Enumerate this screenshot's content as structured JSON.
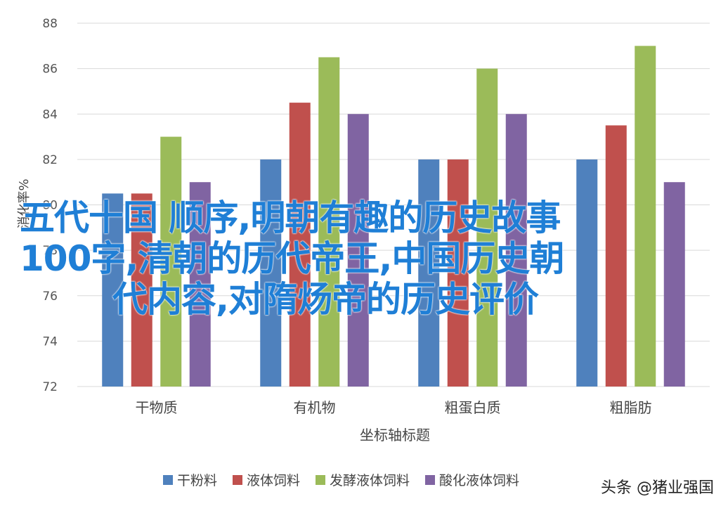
{
  "chart_data": {
    "type": "bar",
    "categories": [
      "干物质",
      "有机物",
      "粗蛋白质",
      "粗脂肪"
    ],
    "series": [
      {
        "name": "干粉料",
        "values": [
          80.5,
          82,
          82,
          82
        ],
        "color": "#4f81bd"
      },
      {
        "name": "液体饲料",
        "values": [
          80.5,
          84.5,
          82,
          83.5
        ],
        "color": "#c0504d"
      },
      {
        "name": "发酵液体饲料",
        "values": [
          83,
          86.5,
          86,
          87
        ],
        "color": "#9bbb59"
      },
      {
        "name": "酸化液体饲料",
        "values": [
          81,
          84,
          84,
          81
        ],
        "color": "#8064a2"
      }
    ],
    "yticks": [
      72,
      74,
      76,
      78,
      80,
      82,
      84,
      86,
      88
    ],
    "ylim": [
      72,
      88
    ],
    "xlabel": "坐标轴标题",
    "ylabel": "消化率%",
    "grid": true,
    "legend_position": "bottom"
  },
  "overlay_text": {
    "line1": "五代十国 顺序,明朝有趣的历史故事",
    "line2": "100字,清朝的历代帝王,中国历史朝",
    "line3": "代内容,对隋炀帝的历史评价"
  },
  "watermark": "头条 @猪业强国"
}
